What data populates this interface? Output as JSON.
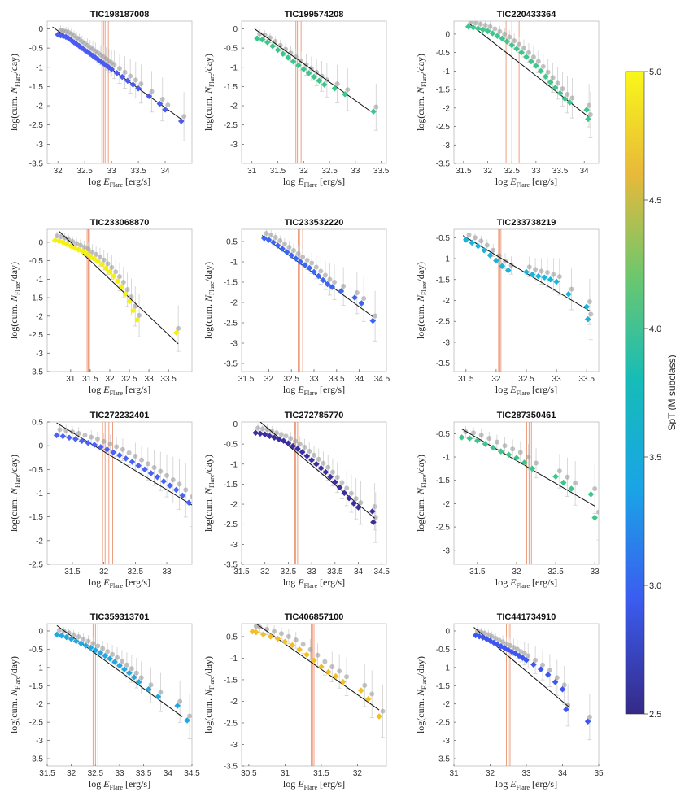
{
  "figure": {
    "colorbar": {
      "label": "SpT (M subclass)",
      "min": 2.5,
      "max": 5.0,
      "ticks": [
        "2.5",
        "3.0",
        "3.5",
        "4.0",
        "4.5",
        "5.0"
      ]
    },
    "axis_labels": {
      "x": "log E_Flare [erg/s]",
      "y": "log(cum. N_Flare/day)"
    }
  },
  "chart_data": [
    {
      "type": "scatter",
      "title": "TIC198187008",
      "spt_color": "#4b5af2",
      "xlim": [
        31.8,
        34.5
      ],
      "ylim": [
        -3.5,
        0.2
      ],
      "xticks": [
        32,
        32.5,
        33,
        33.5,
        34
      ],
      "yticks": [
        0,
        -0.5,
        -1,
        -1.5,
        -2,
        -2.5,
        -3,
        -3.5
      ],
      "vlines": [
        32.82,
        32.85,
        32.88,
        32.94
      ],
      "fit": {
        "x": [
          31.9,
          34.3
        ],
        "y": [
          0.05,
          -2.35
        ]
      },
      "series": [
        {
          "name": "flares",
          "x": [
            32.0,
            32.05,
            32.1,
            32.15,
            32.2,
            32.25,
            32.3,
            32.35,
            32.4,
            32.45,
            32.5,
            32.55,
            32.6,
            32.65,
            32.7,
            32.75,
            32.8,
            32.85,
            32.9,
            32.95,
            33.0,
            33.1,
            33.2,
            33.3,
            33.4,
            33.5,
            33.7,
            33.9,
            34.0,
            34.3
          ],
          "y": [
            -0.15,
            -0.17,
            -0.19,
            -0.21,
            -0.25,
            -0.3,
            -0.35,
            -0.4,
            -0.45,
            -0.5,
            -0.55,
            -0.6,
            -0.65,
            -0.7,
            -0.75,
            -0.8,
            -0.85,
            -0.9,
            -0.95,
            -1.0,
            -1.05,
            -1.15,
            -1.25,
            -1.35,
            -1.45,
            -1.55,
            -1.75,
            -1.95,
            -2.1,
            -2.4
          ]
        }
      ]
    },
    {
      "type": "scatter",
      "title": "TIC199574208",
      "spt_color": "#3cc78a",
      "xlim": [
        30.8,
        33.6
      ],
      "ylim": [
        -3.5,
        0.2
      ],
      "xticks": [
        31,
        31.5,
        32,
        32.5,
        33,
        33.5
      ],
      "yticks": [
        0,
        -0.5,
        -1,
        -1.5,
        -2,
        -2.5,
        -3
      ],
      "vlines": [
        31.85,
        31.88,
        31.95
      ],
      "fit": {
        "x": [
          31.05,
          33.3
        ],
        "y": [
          0.0,
          -2.15
        ]
      },
      "series": [
        {
          "name": "flares",
          "x": [
            31.1,
            31.2,
            31.3,
            31.4,
            31.5,
            31.6,
            31.7,
            31.8,
            31.9,
            32.0,
            32.1,
            32.2,
            32.3,
            32.4,
            32.6,
            32.8,
            33.35
          ],
          "y": [
            -0.25,
            -0.28,
            -0.35,
            -0.45,
            -0.55,
            -0.65,
            -0.75,
            -0.85,
            -0.95,
            -1.05,
            -1.15,
            -1.25,
            -1.35,
            -1.45,
            -1.55,
            -1.7,
            -2.15
          ]
        }
      ]
    },
    {
      "type": "scatter",
      "title": "TIC220433364",
      "spt_color": "#3dc78d",
      "xlim": [
        31.3,
        34.3
      ],
      "ylim": [
        -3.5,
        0.35
      ],
      "xticks": [
        31.5,
        32,
        32.5,
        33,
        33.5,
        34
      ],
      "yticks": [
        0,
        -0.5,
        -1,
        -1.5,
        -2,
        -2.5,
        -3,
        -3.5
      ],
      "vlines": [
        32.38,
        32.42,
        32.5,
        32.65
      ],
      "fit": {
        "x": [
          31.6,
          34.1
        ],
        "y": [
          0.3,
          -2.25
        ]
      },
      "series": [
        {
          "name": "flares",
          "x": [
            31.6,
            31.7,
            31.8,
            31.9,
            32.0,
            32.1,
            32.2,
            32.3,
            32.4,
            32.5,
            32.6,
            32.7,
            32.8,
            32.9,
            33.0,
            33.1,
            33.2,
            33.3,
            33.4,
            33.5,
            33.6,
            33.7,
            34.05,
            34.08
          ],
          "y": [
            0.2,
            0.18,
            0.15,
            0.12,
            0.08,
            0.02,
            -0.05,
            -0.12,
            -0.2,
            -0.3,
            -0.4,
            -0.5,
            -0.62,
            -0.74,
            -0.86,
            -1.0,
            -1.15,
            -1.3,
            -1.45,
            -1.6,
            -1.75,
            -1.85,
            -2.05,
            -2.3
          ]
        }
      ]
    },
    {
      "type": "scatter",
      "title": "TIC233068870",
      "spt_color": "#f4f011",
      "xlim": [
        30.4,
        34.1
      ],
      "ylim": [
        -3.5,
        0.35
      ],
      "xticks": [
        31,
        31.5,
        32,
        32.5,
        33,
        33.5
      ],
      "yticks": [
        0,
        -0.5,
        -1,
        -1.5,
        -2,
        -2.5,
        -3,
        -3.5
      ],
      "vlines": [
        31.42,
        31.45,
        31.48
      ],
      "fit": {
        "x": [
          30.7,
          33.75
        ],
        "y": [
          0.3,
          -2.75
        ]
      },
      "series": [
        {
          "name": "flares",
          "x": [
            30.6,
            30.7,
            30.8,
            30.9,
            31.0,
            31.1,
            31.2,
            31.3,
            31.4,
            31.5,
            31.6,
            31.7,
            31.8,
            31.9,
            32.0,
            32.1,
            32.2,
            32.3,
            32.4,
            32.5,
            32.6,
            32.7,
            33.7
          ],
          "y": [
            0.05,
            0.03,
            0.0,
            -0.05,
            -0.1,
            -0.15,
            -0.2,
            -0.25,
            -0.3,
            -0.38,
            -0.45,
            -0.52,
            -0.6,
            -0.7,
            -0.8,
            -0.92,
            -1.05,
            -1.2,
            -1.4,
            -1.6,
            -1.85,
            -2.1,
            -2.45
          ]
        }
      ]
    },
    {
      "type": "scatter",
      "title": "TIC233532220",
      "spt_color": "#3a66f5",
      "xlim": [
        31.4,
        34.6
      ],
      "ylim": [
        -3.7,
        -0.2
      ],
      "xticks": [
        31.5,
        32,
        32.5,
        33,
        33.5,
        34,
        34.5
      ],
      "yticks": [
        -0.5,
        -1,
        -1.5,
        -2,
        -2.5,
        -3,
        -3.5
      ],
      "vlines": [
        32.65,
        32.68,
        32.75
      ],
      "fit": {
        "x": [
          31.85,
          34.3
        ],
        "y": [
          -0.35,
          -2.35
        ]
      },
      "series": [
        {
          "name": "flares",
          "x": [
            31.9,
            32.0,
            32.1,
            32.2,
            32.3,
            32.4,
            32.5,
            32.6,
            32.7,
            32.8,
            32.9,
            33.0,
            33.1,
            33.2,
            33.3,
            33.4,
            33.6,
            33.9,
            34.05,
            34.3
          ],
          "y": [
            -0.42,
            -0.46,
            -0.52,
            -0.6,
            -0.68,
            -0.76,
            -0.84,
            -0.92,
            -1.0,
            -1.08,
            -1.15,
            -1.25,
            -1.35,
            -1.45,
            -1.55,
            -1.62,
            -1.72,
            -1.88,
            -2.02,
            -2.45
          ]
        }
      ]
    },
    {
      "type": "scatter",
      "title": "TIC233738219",
      "spt_color": "#1ab3d9",
      "xlim": [
        31.3,
        33.7
      ],
      "ylim": [
        -3.7,
        -0.3
      ],
      "xticks": [
        31.5,
        32,
        32.5,
        33,
        33.5
      ],
      "yticks": [
        -0.5,
        -1,
        -1.5,
        -2,
        -2.5,
        -3,
        -3.5
      ],
      "vlines": [
        32.04,
        32.06,
        32.08
      ],
      "fit": {
        "x": [
          31.45,
          33.55
        ],
        "y": [
          -0.45,
          -2.25
        ]
      },
      "series": [
        {
          "name": "flares",
          "x": [
            31.5,
            31.6,
            31.7,
            31.8,
            31.9,
            32.0,
            32.1,
            32.2,
            32.5,
            32.6,
            32.7,
            32.8,
            32.9,
            33.0,
            33.2,
            33.5,
            33.52
          ],
          "y": [
            -0.55,
            -0.62,
            -0.7,
            -0.8,
            -0.92,
            -1.05,
            -1.18,
            -1.28,
            -1.32,
            -1.38,
            -1.42,
            -1.45,
            -1.5,
            -1.55,
            -1.85,
            -2.15,
            -2.45
          ]
        }
      ]
    },
    {
      "type": "scatter",
      "title": "TIC272232401",
      "spt_color": "#4a63f4",
      "xlim": [
        31.1,
        33.4
      ],
      "ylim": [
        -2.5,
        0.5
      ],
      "xticks": [
        31.5,
        32,
        32.5,
        33
      ],
      "yticks": [
        0.5,
        0,
        -0.5,
        -1,
        -1.5,
        -2,
        -2.5
      ],
      "vlines": [
        31.98,
        32.02,
        32.08,
        32.14
      ],
      "fit": {
        "x": [
          31.25,
          33.4
        ],
        "y": [
          0.48,
          -1.25
        ]
      },
      "series": [
        {
          "name": "flares",
          "x": [
            31.25,
            31.35,
            31.45,
            31.55,
            31.65,
            31.75,
            31.85,
            31.95,
            32.05,
            32.15,
            32.25,
            32.35,
            32.45,
            32.55,
            32.65,
            32.75,
            32.85,
            32.95,
            33.05,
            33.15,
            33.25,
            33.35
          ],
          "y": [
            0.22,
            0.2,
            0.17,
            0.14,
            0.1,
            0.06,
            0.02,
            -0.03,
            -0.08,
            -0.14,
            -0.2,
            -0.27,
            -0.34,
            -0.42,
            -0.5,
            -0.58,
            -0.66,
            -0.75,
            -0.84,
            -0.93,
            -1.05,
            -1.2
          ]
        }
      ]
    },
    {
      "type": "scatter",
      "title": "TIC272785770",
      "spt_color": "#3b2ea0",
      "xlim": [
        31.5,
        34.6
      ],
      "ylim": [
        -3.5,
        0.05
      ],
      "xticks": [
        31.5,
        32,
        32.5,
        33,
        33.5,
        34,
        34.5
      ],
      "yticks": [
        0,
        -0.5,
        -1,
        -1.5,
        -2,
        -2.5,
        -3,
        -3.5
      ],
      "vlines": [
        32.64,
        32.66,
        32.7
      ],
      "fit": {
        "x": [
          31.9,
          34.35
        ],
        "y": [
          0.05,
          -2.35
        ]
      },
      "series": [
        {
          "name": "flares",
          "x": [
            31.8,
            31.9,
            32.0,
            32.1,
            32.2,
            32.3,
            32.4,
            32.5,
            32.6,
            32.7,
            32.8,
            32.9,
            33.0,
            33.1,
            33.2,
            33.3,
            33.4,
            33.5,
            33.6,
            33.7,
            33.8,
            33.9,
            34.0,
            34.3,
            34.32
          ],
          "y": [
            -0.22,
            -0.24,
            -0.26,
            -0.3,
            -0.34,
            -0.38,
            -0.42,
            -0.48,
            -0.55,
            -0.62,
            -0.7,
            -0.8,
            -0.9,
            -1.0,
            -1.1,
            -1.2,
            -1.32,
            -1.45,
            -1.58,
            -1.72,
            -1.85,
            -1.98,
            -2.08,
            -2.18,
            -2.45
          ]
        }
      ]
    },
    {
      "type": "scatter",
      "title": "TIC287350461",
      "spt_color": "#3ec68a",
      "xlim": [
        31.2,
        33.05
      ],
      "ylim": [
        -3.3,
        -0.25
      ],
      "xticks": [
        31.5,
        32,
        32.5,
        33
      ],
      "yticks": [
        -0.5,
        -1,
        -1.5,
        -2,
        -2.5,
        -3
      ],
      "vlines": [
        32.13,
        32.16,
        32.19
      ],
      "fit": {
        "x": [
          31.3,
          33.0
        ],
        "y": [
          -0.4,
          -2.05
        ]
      },
      "series": [
        {
          "name": "flares",
          "x": [
            31.3,
            31.4,
            31.5,
            31.6,
            31.7,
            31.8,
            31.9,
            32.0,
            32.1,
            32.2,
            32.5,
            32.6,
            32.7,
            32.95,
            33.0
          ],
          "y": [
            -0.58,
            -0.6,
            -0.65,
            -0.72,
            -0.8,
            -0.88,
            -0.95,
            -1.02,
            -1.12,
            -1.25,
            -1.42,
            -1.55,
            -1.68,
            -1.8,
            -2.3
          ]
        }
      ]
    },
    {
      "type": "scatter",
      "title": "TIC359313701",
      "spt_color": "#22a7e0",
      "xlim": [
        31.5,
        34.5
      ],
      "ylim": [
        -3.7,
        0.2
      ],
      "xticks": [
        31.5,
        32,
        32.5,
        33,
        33.5,
        34,
        34.5
      ],
      "yticks": [
        0,
        -0.5,
        -1,
        -1.5,
        -2,
        -2.5,
        -3,
        -3.5
      ],
      "vlines": [
        32.45,
        32.5,
        32.55
      ],
      "fit": {
        "x": [
          31.7,
          34.3
        ],
        "y": [
          0.15,
          -2.35
        ]
      },
      "series": [
        {
          "name": "flares",
          "x": [
            31.7,
            31.8,
            31.9,
            32.0,
            32.1,
            32.2,
            32.3,
            32.4,
            32.5,
            32.6,
            32.7,
            32.8,
            32.9,
            33.0,
            33.1,
            33.2,
            33.3,
            33.4,
            33.6,
            33.8,
            34.2,
            34.4
          ],
          "y": [
            -0.1,
            -0.13,
            -0.17,
            -0.22,
            -0.28,
            -0.34,
            -0.4,
            -0.46,
            -0.53,
            -0.6,
            -0.68,
            -0.76,
            -0.85,
            -0.95,
            -1.05,
            -1.15,
            -1.27,
            -1.4,
            -1.6,
            -1.8,
            -2.05,
            -2.45
          ]
        }
      ]
    },
    {
      "type": "scatter",
      "title": "TIC406857100",
      "spt_color": "#f2bf24",
      "xlim": [
        30.4,
        32.4
      ],
      "ylim": [
        -3.5,
        -0.2
      ],
      "xticks": [
        30.5,
        31,
        31.5,
        32
      ],
      "yticks": [
        -0.5,
        -1,
        -1.5,
        -2,
        -2.5,
        -3,
        -3.5
      ],
      "vlines": [
        31.36,
        31.38,
        31.4
      ],
      "fit": {
        "x": [
          30.6,
          32.3
        ],
        "y": [
          -0.2,
          -2.2
        ]
      },
      "series": [
        {
          "name": "flares",
          "x": [
            30.55,
            30.6,
            30.7,
            30.8,
            30.9,
            31.0,
            31.1,
            31.2,
            31.3,
            31.4,
            31.5,
            31.6,
            31.7,
            31.8,
            32.05,
            32.15,
            32.3
          ],
          "y": [
            -0.38,
            -0.4,
            -0.45,
            -0.5,
            -0.55,
            -0.62,
            -0.7,
            -0.8,
            -0.92,
            -1.05,
            -1.2,
            -1.32,
            -1.42,
            -1.55,
            -1.75,
            -1.95,
            -2.35
          ]
        }
      ]
    },
    {
      "type": "scatter",
      "title": "TIC441734910",
      "spt_color": "#3e56f0",
      "xlim": [
        31.0,
        35.0
      ],
      "ylim": [
        -3.7,
        0.2
      ],
      "xticks": [
        31,
        32,
        33,
        34,
        35
      ],
      "yticks": [
        0,
        -0.5,
        -1,
        -1.5,
        -2,
        -2.5,
        -3,
        -3.5
      ],
      "vlines": [
        32.45,
        32.5,
        32.55
      ],
      "fit": {
        "x": [
          31.55,
          34.2
        ],
        "y": [
          0.1,
          -2.1
        ]
      },
      "series": [
        {
          "name": "flares",
          "x": [
            31.6,
            31.7,
            31.8,
            31.9,
            32.0,
            32.1,
            32.2,
            32.3,
            32.4,
            32.5,
            32.6,
            32.7,
            32.8,
            32.9,
            33.0,
            33.2,
            33.4,
            33.6,
            33.8,
            34.0,
            34.1,
            34.7
          ],
          "y": [
            -0.12,
            -0.15,
            -0.18,
            -0.22,
            -0.27,
            -0.32,
            -0.37,
            -0.42,
            -0.47,
            -0.52,
            -0.57,
            -0.62,
            -0.68,
            -0.74,
            -0.8,
            -0.92,
            -1.05,
            -1.2,
            -1.4,
            -1.6,
            -2.15,
            -2.48
          ]
        }
      ]
    }
  ]
}
